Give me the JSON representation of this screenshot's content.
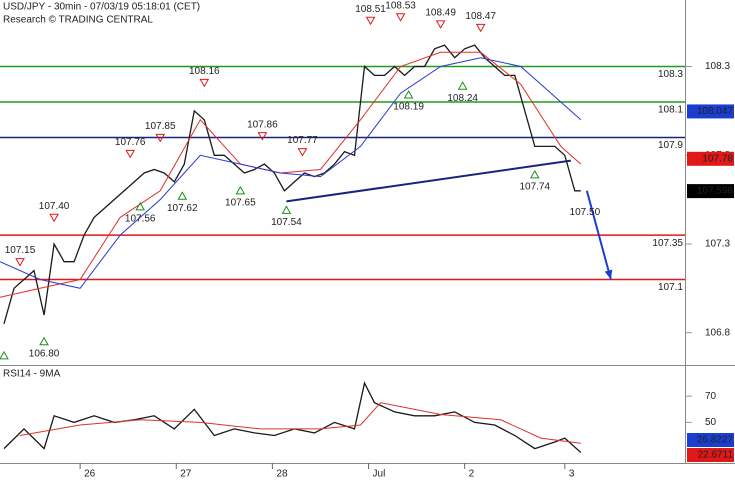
{
  "chart_data": [
    {
      "type": "line",
      "title": "USD/JPY - 30min - 07/03/19 05:18:01 (CET)",
      "subtitle": "Research © TRADING CENTRAL",
      "xlim": [
        0,
        342
      ],
      "ylim": [
        106.618,
        108.675
      ],
      "yticks": [
        106.8,
        107.3,
        107.8,
        108.3
      ],
      "series": [
        {
          "color": "#1a1a1a",
          "x": [
            2,
            7,
            12,
            17,
            22,
            27,
            32,
            37,
            42,
            47,
            52,
            57,
            62,
            67,
            72,
            77,
            82,
            87,
            92,
            97,
            102,
            107,
            112,
            117,
            122,
            127,
            132,
            137,
            142,
            147,
            152,
            157,
            162,
            167,
            172,
            177,
            182,
            187,
            192,
            197,
            202,
            207,
            212,
            217,
            222,
            227,
            232,
            237,
            242,
            247,
            252,
            257,
            262,
            267,
            272,
            277,
            282,
            287,
            290
          ],
          "values": [
            106.85,
            107.05,
            107.1,
            107.15,
            106.9,
            107.3,
            107.2,
            107.2,
            107.35,
            107.45,
            107.5,
            107.55,
            107.6,
            107.65,
            107.7,
            107.72,
            107.7,
            107.65,
            107.75,
            108.05,
            108.0,
            107.8,
            107.8,
            107.75,
            107.7,
            107.72,
            107.75,
            107.7,
            107.6,
            107.65,
            107.7,
            107.68,
            107.7,
            107.75,
            107.82,
            107.8,
            108.3,
            108.25,
            108.25,
            108.3,
            108.25,
            108.3,
            108.3,
            108.4,
            108.42,
            108.35,
            108.4,
            108.42,
            108.35,
            108.3,
            108.25,
            108.25,
            108.05,
            107.85,
            107.85,
            107.85,
            107.8,
            107.6,
            107.6
          ]
        },
        {
          "color": "#e0302a",
          "x": [
            0,
            20,
            40,
            60,
            80,
            100,
            120,
            140,
            160,
            180,
            200,
            220,
            240,
            260,
            280,
            290
          ],
          "values": [
            107.0,
            107.05,
            107.1,
            107.45,
            107.6,
            108.0,
            107.75,
            107.7,
            107.72,
            108.0,
            108.3,
            108.38,
            108.38,
            108.2,
            107.85,
            107.75
          ]
        },
        {
          "color": "#2a3ad0",
          "x": [
            0,
            20,
            40,
            60,
            80,
            100,
            120,
            140,
            160,
            180,
            200,
            220,
            240,
            260,
            280,
            290
          ],
          "values": [
            107.2,
            107.1,
            107.05,
            107.35,
            107.55,
            107.8,
            107.75,
            107.7,
            107.68,
            107.85,
            108.15,
            108.3,
            108.35,
            108.3,
            108.1,
            108.0
          ]
        }
      ],
      "levels": [
        {
          "value": 108.3,
          "color": "#1e9e1e"
        },
        {
          "value": 108.1,
          "color": "#1e9e1e"
        },
        {
          "value": 107.9,
          "color": "#1a237e"
        },
        {
          "value": 107.35,
          "color": "#e01818"
        },
        {
          "value": 107.1,
          "color": "#e01818"
        }
      ],
      "price_tags": [
        {
          "value": 108.047,
          "color": "#1a3fd0"
        },
        {
          "value": 107.78,
          "color": "#e01818"
        },
        {
          "value": 107.598,
          "color": "#000000"
        }
      ],
      "annotations": [
        {
          "x": 2,
          "value": 106.72,
          "dir": "up"
        },
        {
          "label": "107.15",
          "x": 10,
          "value": 107.15,
          "dir": "down"
        },
        {
          "label": "106.80",
          "x": 22,
          "value": 106.8,
          "dir": "up"
        },
        {
          "label": "107.40",
          "x": 27,
          "value": 107.4,
          "dir": "down"
        },
        {
          "label": "107.76",
          "x": 65,
          "value": 107.76,
          "dir": "down"
        },
        {
          "label": "107.56",
          "x": 70,
          "value": 107.56,
          "dir": "up"
        },
        {
          "label": "107.85",
          "x": 80,
          "value": 107.85,
          "dir": "down"
        },
        {
          "label": "107.62",
          "x": 91,
          "value": 107.62,
          "dir": "up"
        },
        {
          "label": "108.16",
          "x": 102,
          "value": 108.16,
          "dir": "down"
        },
        {
          "label": "107.65",
          "x": 120,
          "value": 107.65,
          "dir": "up"
        },
        {
          "label": "107.86",
          "x": 131,
          "value": 107.86,
          "dir": "down"
        },
        {
          "label": "107.54",
          "x": 143,
          "value": 107.54,
          "dir": "up"
        },
        {
          "label": "107.77",
          "x": 151,
          "value": 107.77,
          "dir": "down"
        },
        {
          "label": "108.51",
          "x": 185,
          "value": 108.51,
          "dir": "down"
        },
        {
          "label": "108.53",
          "x": 200,
          "value": 108.53,
          "dir": "down"
        },
        {
          "label": "108.19",
          "x": 204,
          "value": 108.19,
          "dir": "up"
        },
        {
          "label": "108.49",
          "x": 220,
          "value": 108.49,
          "dir": "down"
        },
        {
          "label": "108.24",
          "x": 231,
          "value": 108.24,
          "dir": "up"
        },
        {
          "label": "108.47",
          "x": 240,
          "value": 108.47,
          "dir": "down"
        },
        {
          "label": "107.74",
          "x": 267,
          "value": 107.74,
          "dir": "up"
        },
        {
          "label": "107.50",
          "x": 292,
          "value": 107.5,
          "dir": "none"
        }
      ],
      "trendline": {
        "x": [
          143,
          285
        ],
        "values": [
          107.54,
          107.77
        ]
      },
      "arrow": {
        "x": [
          293,
          305
        ],
        "values": [
          107.6,
          107.1
        ]
      }
    },
    {
      "type": "line",
      "title": "RSI14 - 9MA",
      "xlim": [
        0,
        342
      ],
      "ylim": [
        19,
        91.5
      ],
      "yticks": [
        50,
        70
      ],
      "xticks": [
        {
          "value": 40,
          "label": "26"
        },
        {
          "value": 88,
          "label": "27"
        },
        {
          "value": 136,
          "label": "28"
        },
        {
          "value": 184,
          "label": "Jul"
        },
        {
          "value": 232,
          "label": "2"
        },
        {
          "value": 282,
          "label": "3"
        }
      ],
      "series": [
        {
          "color": "#1a1a1a",
          "x": [
            2,
            12,
            22,
            27,
            37,
            47,
            57,
            67,
            77,
            87,
            97,
            107,
            117,
            127,
            137,
            147,
            157,
            167,
            177,
            182,
            187,
            197,
            207,
            217,
            227,
            237,
            247,
            257,
            267,
            277,
            282,
            290
          ],
          "values": [
            30,
            45,
            30,
            55,
            50,
            55,
            50,
            52,
            55,
            45,
            60,
            40,
            45,
            42,
            40,
            45,
            42,
            50,
            45,
            80,
            65,
            58,
            55,
            55,
            58,
            50,
            48,
            40,
            30,
            35,
            38,
            27
          ]
        },
        {
          "color": "#e0302a",
          "x": [
            10,
            40,
            70,
            100,
            130,
            160,
            180,
            190,
            220,
            250,
            270,
            290
          ],
          "values": [
            40,
            48,
            52,
            50,
            45,
            45,
            48,
            65,
            56,
            52,
            38,
            34
          ]
        }
      ],
      "price_tags": [
        {
          "value": 22.6711,
          "color": "#e01818"
        },
        {
          "value": 26.8227,
          "color": "#1a3fd0"
        }
      ]
    }
  ]
}
